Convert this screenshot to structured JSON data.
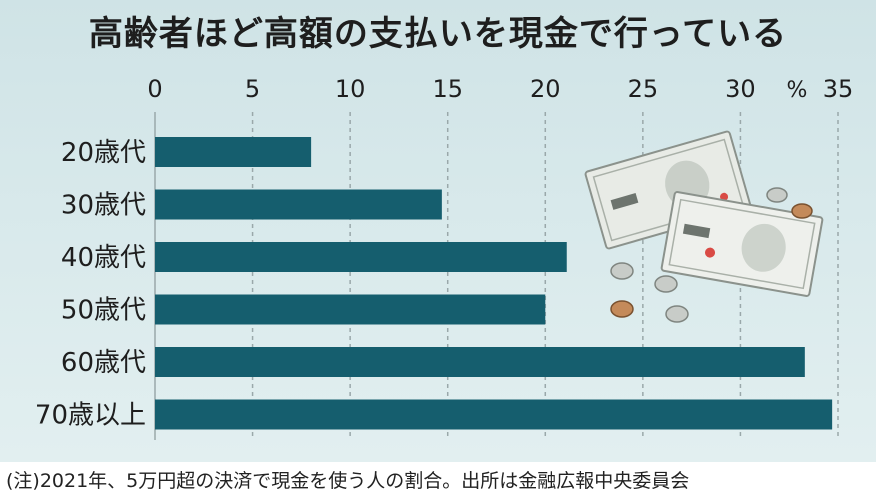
{
  "title": "高齢者ほど高額の支払いを現金で行っている",
  "footnote": "(注)2021年、5万円超の決済で現金を使う人の割合。出所は金融広報中央委員会",
  "colors": {
    "bar": "#155e6e",
    "background": "#d6e8ea",
    "grid": "#9aa8aa"
  },
  "chart_data": {
    "type": "bar",
    "orientation": "horizontal",
    "categories": [
      "20歳代",
      "30歳代",
      "40歳代",
      "50歳代",
      "60歳代",
      "70歳以上"
    ],
    "values": [
      8,
      14.7,
      21.1,
      20,
      33.3,
      34.7
    ],
    "xlim": [
      0,
      35
    ],
    "ticks": [
      "0",
      "5",
      "10",
      "15",
      "20",
      "25",
      "30",
      "35"
    ],
    "unit_label": "%",
    "grid": true
  }
}
